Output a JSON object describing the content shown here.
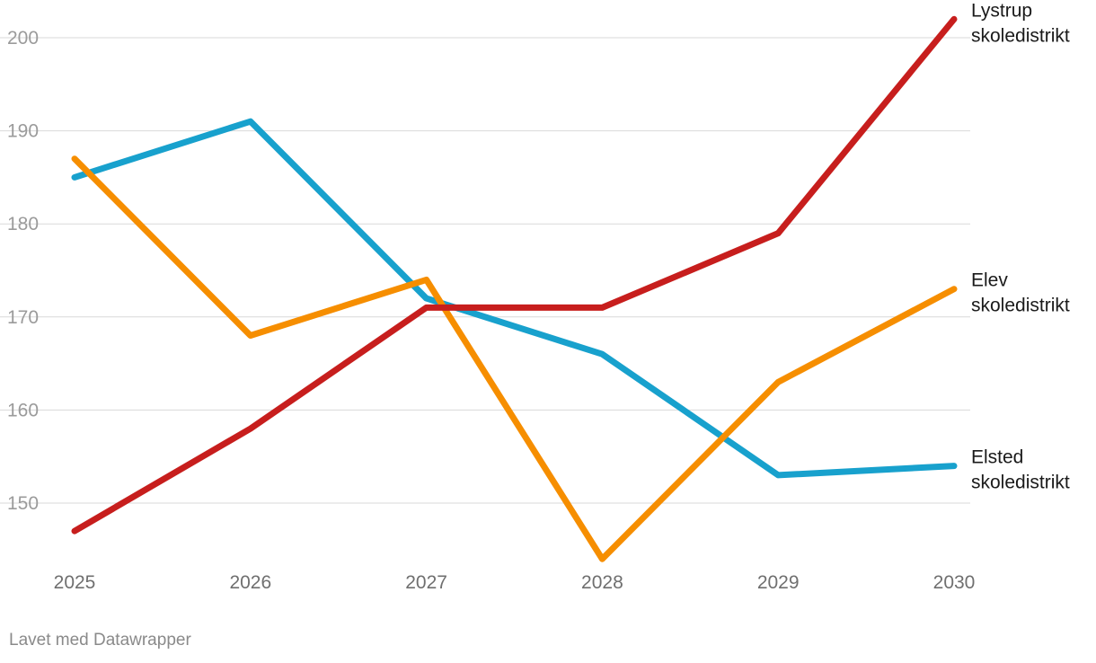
{
  "chart_data": {
    "type": "line",
    "title": "",
    "xlabel": "",
    "ylabel": "",
    "categories": [
      "2025",
      "2026",
      "2027",
      "2028",
      "2029",
      "2030"
    ],
    "y_ticks": [
      150,
      160,
      170,
      180,
      190,
      200
    ],
    "ylim": [
      144,
      202
    ],
    "grid": true,
    "legend": "inline-right",
    "series": [
      {
        "name": "Elsted skoledistrikt",
        "label_lines": [
          "Elsted",
          "skoledistrikt"
        ],
        "color": "#18a1cd",
        "values": [
          185,
          191,
          172,
          166,
          153,
          154
        ]
      },
      {
        "name": "Elev skoledistrikt",
        "label_lines": [
          "Elev",
          "skoledistrikt"
        ],
        "color": "#f68e00",
        "values": [
          187,
          168,
          174,
          144,
          163,
          173
        ]
      },
      {
        "name": "Lystrup skoledistrikt",
        "label_lines": [
          "Lystrup",
          "skoledistrikt"
        ],
        "color": "#c71e1d",
        "values": [
          147,
          158,
          171,
          171,
          179,
          202
        ]
      }
    ]
  },
  "footer": {
    "credit": "Lavet med Datawrapper"
  }
}
